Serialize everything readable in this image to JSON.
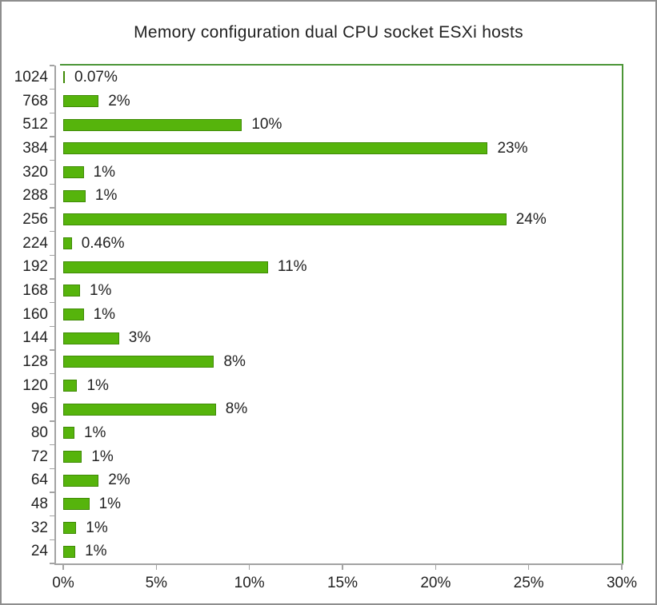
{
  "title": "Memory configuration dual CPU socket ESXi hosts",
  "colors": {
    "bar_fill": "#56b40c",
    "bar_border": "#3f8a06",
    "plot_border": "#4c9637",
    "axis_line": "#a3a3a3",
    "text": "#222222",
    "frame_border": "#8e8e8e",
    "background": "#ffffff"
  },
  "chart_data": {
    "type": "bar",
    "orientation": "horizontal",
    "title": "Memory configuration dual CPU socket ESXi hosts",
    "ylabel": "",
    "xlabel": "",
    "categories": [
      "1024",
      "768",
      "512",
      "384",
      "320",
      "288",
      "256",
      "224",
      "192",
      "168",
      "160",
      "144",
      "128",
      "120",
      "96",
      "80",
      "72",
      "64",
      "48",
      "32",
      "24"
    ],
    "values": [
      0.07,
      1.9,
      9.6,
      22.8,
      1.1,
      1.2,
      23.8,
      0.46,
      11.0,
      0.9,
      1.1,
      3.0,
      8.1,
      0.75,
      8.2,
      0.6,
      1.0,
      1.9,
      1.4,
      0.7,
      0.65
    ],
    "value_labels": [
      "0.07%",
      "2%",
      "10%",
      "23%",
      "1%",
      "1%",
      "24%",
      "0.46%",
      "11%",
      "1%",
      "1%",
      "3%",
      "8%",
      "1%",
      "8%",
      "1%",
      "1%",
      "2%",
      "1%",
      "1%",
      "1%"
    ],
    "xlim": [
      0,
      30
    ],
    "x_ticks": [
      {
        "value": 0,
        "label": "0%"
      },
      {
        "value": 5,
        "label": "5%"
      },
      {
        "value": 10,
        "label": "10%"
      },
      {
        "value": 15,
        "label": "15%"
      },
      {
        "value": 20,
        "label": "20%"
      },
      {
        "value": 25,
        "label": "25%"
      },
      {
        "value": 30,
        "label": "30%"
      }
    ],
    "grid": false,
    "legend": false
  }
}
